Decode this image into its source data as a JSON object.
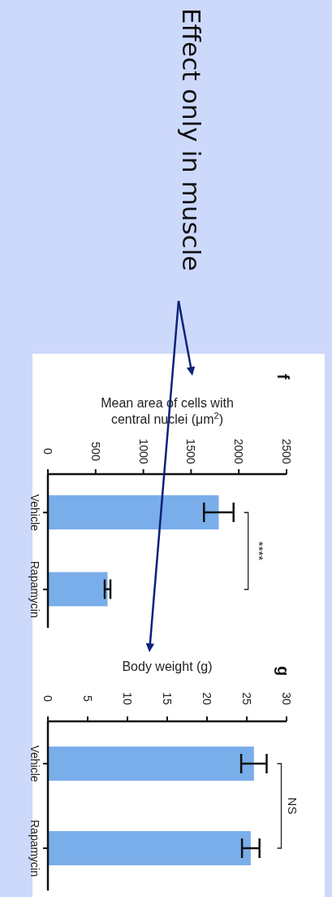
{
  "chart_data": [
    {
      "type": "other",
      "annotations": [
        "Effect only in muscle"
      ]
    },
    {
      "type": "bar",
      "orientation": "horizontal",
      "title": "f",
      "xlabel": "Mean area of cells with central nuclei (μm$^{2}$)",
      "categories": [
        "Vehicle",
        "Rapamycin"
      ],
      "values": [
        1790,
        625
      ],
      "errors": [
        155,
        30
      ],
      "color": "#7aaeea",
      "xlim": [
        0,
        2500
      ],
      "xticks": [
        0,
        500,
        1000,
        1500,
        2000,
        2500
      ],
      "annotations": [
        "****"
      ]
    },
    {
      "type": "bar",
      "orientation": "horizontal",
      "title": "g",
      "xlabel": "Body weight (g)",
      "categories": [
        "Vehicle",
        "Rapamycin"
      ],
      "values": [
        25.9,
        25.5
      ],
      "errors": [
        1.6,
        1.1
      ],
      "color": "#7aaeea",
      "xlim": [
        0,
        30
      ],
      "xticks": [
        0,
        5,
        10,
        15,
        20,
        25,
        30
      ],
      "annotations": [
        "NS"
      ]
    }
  ]
}
